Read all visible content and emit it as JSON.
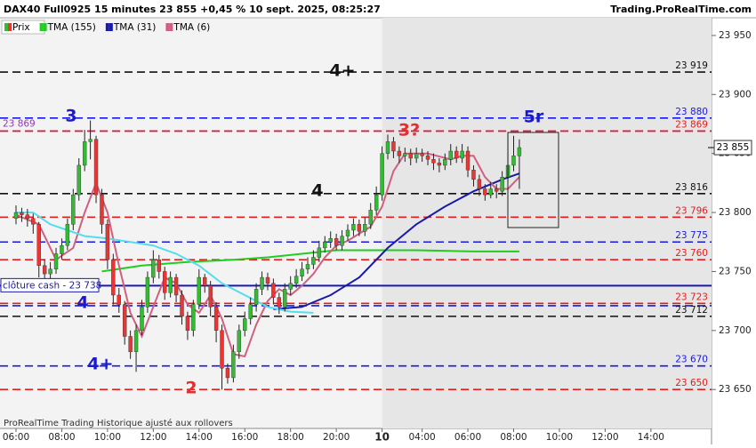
{
  "chart_data": {
    "type": "candlestick",
    "title": "DAX40 Full0925 15 minutes 23 855 +0,45 % 10 sept. 2025, 08:25:27",
    "source": "Trading.ProRealTime.com",
    "footer": "ProRealTime Trading  Historique ajusté aux rollovers",
    "xlim": [
      -2.8,
      121.6
    ],
    "xticks": [
      {
        "value": 0,
        "label": "06:00"
      },
      {
        "value": 8,
        "label": "08:00"
      },
      {
        "value": 16,
        "label": "10:00"
      },
      {
        "value": 24,
        "label": "12:00"
      },
      {
        "value": 32,
        "label": "14:00"
      },
      {
        "value": 40,
        "label": "16:00"
      },
      {
        "value": 48,
        "label": "18:00"
      },
      {
        "value": 56,
        "label": "20:00"
      },
      {
        "value": 64,
        "label": "10",
        "bold": true
      },
      {
        "value": 71,
        "label": "04:00"
      },
      {
        "value": 79,
        "label": "06:00"
      },
      {
        "value": 87,
        "label": "08:00"
      },
      {
        "value": 95,
        "label": "10:00"
      },
      {
        "value": 103,
        "label": "12:00"
      },
      {
        "value": 111,
        "label": "14:00"
      }
    ],
    "ylim": [
      23617,
      23965
    ],
    "yticks": [
      {
        "value": 23950,
        "label": "23 950"
      },
      {
        "value": 23900,
        "label": "23 900"
      },
      {
        "value": 23850,
        "label": "23 850"
      },
      {
        "value": 23800,
        "label": "23 800"
      },
      {
        "value": 23750,
        "label": "23 750"
      },
      {
        "value": 23700,
        "label": "23 700"
      },
      {
        "value": 23650,
        "label": "23 650"
      }
    ],
    "candles": {
      "name": "Prix",
      "up_color": "#33bb33",
      "down_color": "#ee3333",
      "open": [
        23795,
        23800,
        23798,
        23795,
        23790,
        23755,
        23748,
        23752,
        23765,
        23772,
        23790,
        23815,
        23840,
        23860,
        23862,
        23815,
        23790,
        23760,
        23730,
        23722,
        23695,
        23682,
        23700,
        23720,
        23745,
        23760,
        23750,
        23732,
        23745,
        23730,
        23712,
        23700,
        23722,
        23745,
        23738,
        23720,
        23700,
        23668,
        23660,
        23682,
        23700,
        23710,
        23722,
        23735,
        23745,
        23740,
        23728,
        23720,
        23735,
        23740,
        23746,
        23752,
        23756,
        23762,
        23770,
        23775,
        23778,
        23772,
        23780,
        23785,
        23790,
        23784,
        23790,
        23802,
        23815,
        23850,
        23860,
        23852,
        23848,
        23850,
        23846,
        23850,
        23848,
        23845,
        23842,
        23840,
        23845,
        23852,
        23846,
        23852,
        23836,
        23828,
        23820,
        23815,
        23820,
        23818,
        23830,
        23840,
        23848
      ],
      "high": [
        23806,
        23804,
        23803,
        23799,
        23792,
        23760,
        23758,
        23770,
        23778,
        23795,
        23820,
        23846,
        23870,
        23878,
        23865,
        23820,
        23794,
        23765,
        23736,
        23725,
        23700,
        23705,
        23726,
        23750,
        23768,
        23764,
        23754,
        23750,
        23748,
        23734,
        23716,
        23726,
        23752,
        23748,
        23742,
        23724,
        23705,
        23672,
        23688,
        23705,
        23716,
        23728,
        23740,
        23750,
        23749,
        23744,
        23732,
        23740,
        23746,
        23752,
        23758,
        23762,
        23768,
        23776,
        23780,
        23784,
        23782,
        23785,
        23790,
        23795,
        23794,
        23796,
        23808,
        23822,
        23856,
        23866,
        23864,
        23856,
        23855,
        23854,
        23855,
        23854,
        23852,
        23850,
        23846,
        23850,
        23858,
        23856,
        23858,
        23856,
        23840,
        23832,
        23824,
        23826,
        23824,
        23835,
        23866,
        23865,
        23862
      ],
      "low": [
        23790,
        23792,
        23788,
        23782,
        23745,
        23742,
        23740,
        23748,
        23760,
        23768,
        23785,
        23810,
        23835,
        23845,
        23808,
        23782,
        23752,
        23722,
        23715,
        23688,
        23676,
        23665,
        23696,
        23715,
        23740,
        23744,
        23726,
        23728,
        23724,
        23705,
        23692,
        23695,
        23718,
        23732,
        23712,
        23690,
        23650,
        23655,
        23656,
        23676,
        23695,
        23705,
        23716,
        23730,
        23734,
        23722,
        23714,
        23716,
        23730,
        23736,
        23742,
        23748,
        23752,
        23758,
        23766,
        23770,
        23768,
        23768,
        23776,
        23780,
        23780,
        23780,
        23786,
        23798,
        23810,
        23845,
        23846,
        23842,
        23843,
        23840,
        23842,
        23843,
        23840,
        23836,
        23834,
        23836,
        23840,
        23842,
        23842,
        23830,
        23822,
        23814,
        23810,
        23812,
        23812,
        23814,
        23826,
        23835,
        23820
      ],
      "close": [
        23800,
        23798,
        23795,
        23790,
        23755,
        23748,
        23752,
        23765,
        23772,
        23790,
        23815,
        23840,
        23860,
        23862,
        23815,
        23790,
        23760,
        23730,
        23722,
        23695,
        23682,
        23700,
        23720,
        23745,
        23760,
        23750,
        23732,
        23745,
        23730,
        23712,
        23700,
        23722,
        23745,
        23738,
        23720,
        23700,
        23668,
        23660,
        23682,
        23700,
        23710,
        23722,
        23735,
        23745,
        23740,
        23728,
        23720,
        23735,
        23740,
        23746,
        23752,
        23756,
        23762,
        23770,
        23775,
        23778,
        23772,
        23780,
        23785,
        23790,
        23784,
        23790,
        23802,
        23815,
        23850,
        23860,
        23852,
        23848,
        23850,
        23846,
        23850,
        23848,
        23845,
        23842,
        23840,
        23845,
        23852,
        23846,
        23852,
        23836,
        23828,
        23820,
        23815,
        23820,
        23818,
        23830,
        23840,
        23848,
        23855
      ]
    },
    "series": [
      {
        "name": "TMA (155)",
        "color": "#22cc22",
        "x": [
          15,
          22,
          30,
          38,
          44,
          50,
          56,
          62,
          70,
          80,
          88
        ],
        "values": [
          23750,
          23755,
          23758,
          23760,
          23762,
          23765,
          23768,
          23768,
          23768,
          23767,
          23767
        ]
      },
      {
        "name": "TMA (31)",
        "color": "#1a1aaa",
        "x": [
          45,
          50,
          55,
          60,
          65,
          70,
          75,
          80,
          85,
          88
        ],
        "values": [
          23718,
          23720,
          23730,
          23745,
          23770,
          23790,
          23805,
          23818,
          23828,
          23833
        ]
      },
      {
        "name": "TMA (6)",
        "color": "#d0607e",
        "x": [
          0,
          4,
          7,
          10,
          12,
          14,
          16,
          18,
          20,
          22,
          24,
          26,
          28,
          30,
          32,
          34,
          36,
          38,
          40,
          42,
          44,
          46,
          48,
          50,
          52,
          54,
          56,
          58,
          60,
          62,
          64,
          66,
          68,
          72,
          76,
          78,
          80,
          82,
          84,
          86,
          88
        ],
        "values": [
          23798,
          23790,
          23760,
          23770,
          23800,
          23825,
          23800,
          23755,
          23715,
          23695,
          23720,
          23745,
          23740,
          23722,
          23715,
          23730,
          23710,
          23680,
          23678,
          23705,
          23725,
          23735,
          23730,
          23738,
          23748,
          23762,
          23772,
          23776,
          23782,
          23788,
          23805,
          23835,
          23850,
          23850,
          23845,
          23848,
          23848,
          23830,
          23820,
          23820,
          23830
        ]
      },
      {
        "color": "#55ddee",
        "x": [
          0,
          3,
          6,
          9,
          12,
          16,
          20,
          24,
          28,
          32,
          36,
          40,
          44,
          48,
          52
        ],
        "values": [
          23800,
          23800,
          23790,
          23785,
          23780,
          23778,
          23775,
          23772,
          23765,
          23755,
          23740,
          23730,
          23720,
          23716,
          23715
        ]
      }
    ],
    "levels": [
      {
        "value": 23919,
        "label": "23 919",
        "color": "#111111",
        "style": "dashed"
      },
      {
        "value": 23880,
        "label": "23 880",
        "color": "#1a1add",
        "style": "dashed"
      },
      {
        "value": 23869,
        "label": "23 869",
        "color": "#9933cc",
        "style": "dashed",
        "label_side": "left"
      },
      {
        "value": 23869,
        "label": "23 869",
        "color": "#e02020",
        "style": "dashed"
      },
      {
        "value": 23816,
        "label": "23 816",
        "color": "#111111",
        "style": "dashed"
      },
      {
        "value": 23796,
        "label": "23 796",
        "color": "#e02020",
        "style": "dashed"
      },
      {
        "value": 23775,
        "label": "23 775",
        "color": "#1a1add",
        "style": "dashed"
      },
      {
        "value": 23760,
        "label": "23 760",
        "color": "#e02020",
        "style": "dashed"
      },
      {
        "value": 23738,
        "label": "clôture cash -  23 738",
        "color": "#1a1aaa",
        "style": "solid",
        "label_side": "left"
      },
      {
        "value": 23723,
        "label": "23 723",
        "color": "#e02020",
        "style": "dashed"
      },
      {
        "value": 23721,
        "color": "#1a1add",
        "style": "dashed"
      },
      {
        "value": 23712,
        "label": "23 712",
        "color": "#111111",
        "style": "dashed"
      },
      {
        "value": 23670,
        "label": "23 670",
        "color": "#1a1add",
        "style": "dashed"
      },
      {
        "value": 23650,
        "label": "23 650",
        "color": "#e02020",
        "style": "dashed"
      }
    ],
    "current": {
      "value": 23855,
      "label": "23 855"
    },
    "annotations": [
      {
        "text": "4+",
        "color": "#111111"
      },
      {
        "text": "4",
        "color": "#111111"
      },
      {
        "text": "3",
        "color": "#1a1acc"
      },
      {
        "text": "4",
        "color": "#1a1acc"
      },
      {
        "text": "4+",
        "color": "#1a1acc"
      },
      {
        "text": "2",
        "color": "#e03030"
      },
      {
        "text": "3?",
        "color": "#e03030"
      },
      {
        "text": "5r",
        "color": "#1a1acc"
      }
    ]
  }
}
